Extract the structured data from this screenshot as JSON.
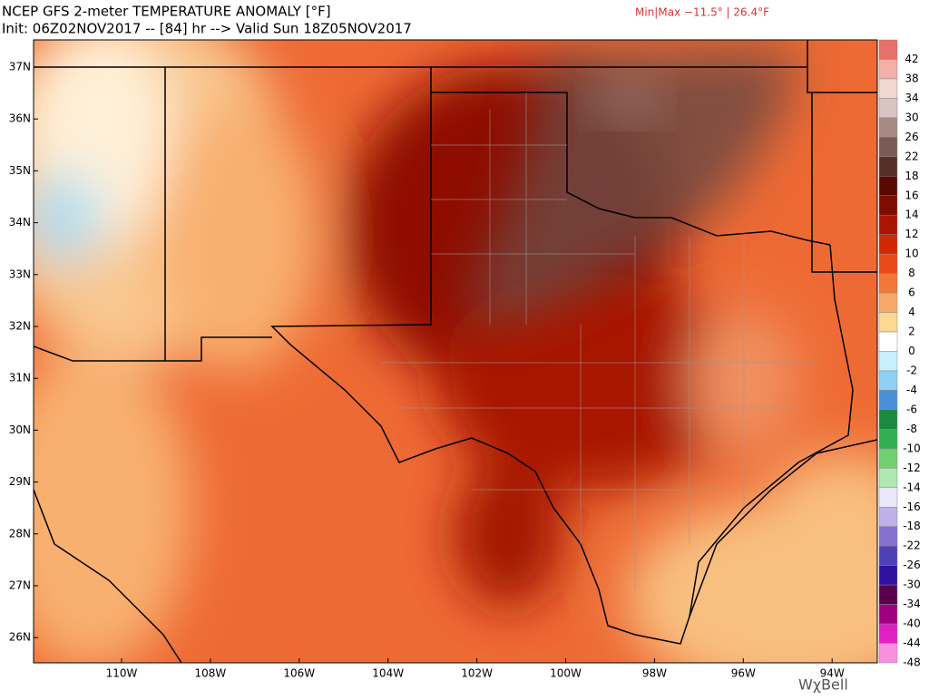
{
  "header": {
    "title": "NCEP GFS 2-meter TEMPERATURE ANOMALY [°F]",
    "init": "Init: 06Z02NOV2017 -- [84] hr --> Valid Sun 18Z05NOV2017",
    "minmax": "Min|Max −11.5° | 26.4°F"
  },
  "latitude_labels": [
    "37N",
    "36N",
    "35N",
    "34N",
    "33N",
    "32N",
    "31N",
    "30N",
    "29N",
    "28N",
    "27N",
    "26N"
  ],
  "longitude_labels": [
    "110W",
    "108W",
    "106W",
    "104W",
    "102W",
    "100W",
    "98W",
    "96W",
    "94W"
  ],
  "colorbar": [
    {
      "value": 42,
      "color": "#e8706a"
    },
    {
      "value": 38,
      "color": "#f4b0a8"
    },
    {
      "value": 34,
      "color": "#f0d8d0"
    },
    {
      "value": 30,
      "color": "#d8c4c0"
    },
    {
      "value": 26,
      "color": "#a88a84"
    },
    {
      "value": 22,
      "color": "#7a5a52"
    },
    {
      "value": 18,
      "color": "#553028"
    },
    {
      "value": 16,
      "color": "#5a0800"
    },
    {
      "value": 14,
      "color": "#7e0c00"
    },
    {
      "value": 12,
      "color": "#a81600"
    },
    {
      "value": 10,
      "color": "#d02800"
    },
    {
      "value": 8,
      "color": "#e84a18"
    },
    {
      "value": 6,
      "color": "#f07838"
    },
    {
      "value": 4,
      "color": "#f8a868"
    },
    {
      "value": 2,
      "color": "#fcd890"
    },
    {
      "value": 0,
      "color": "#ffffff"
    },
    {
      "value": -2,
      "color": "#c8f0ff"
    },
    {
      "value": -4,
      "color": "#90d0f4"
    },
    {
      "value": -6,
      "color": "#4a90d8"
    },
    {
      "value": -8,
      "color": "#1a8a40"
    },
    {
      "value": -10,
      "color": "#30b050"
    },
    {
      "value": -12,
      "color": "#70d070"
    },
    {
      "value": -14,
      "color": "#b0e8b0"
    },
    {
      "value": -16,
      "color": "#e8e8f8"
    },
    {
      "value": -18,
      "color": "#c0b0e8"
    },
    {
      "value": -22,
      "color": "#8870d0"
    },
    {
      "value": -26,
      "color": "#5040b8"
    },
    {
      "value": -30,
      "color": "#3010a0"
    },
    {
      "value": -34,
      "color": "#58004e"
    },
    {
      "value": -40,
      "color": "#a00080"
    },
    {
      "value": -44,
      "color": "#e020c0"
    },
    {
      "value": -48,
      "color": "#f890e0"
    }
  ],
  "logo": "WχBell"
}
